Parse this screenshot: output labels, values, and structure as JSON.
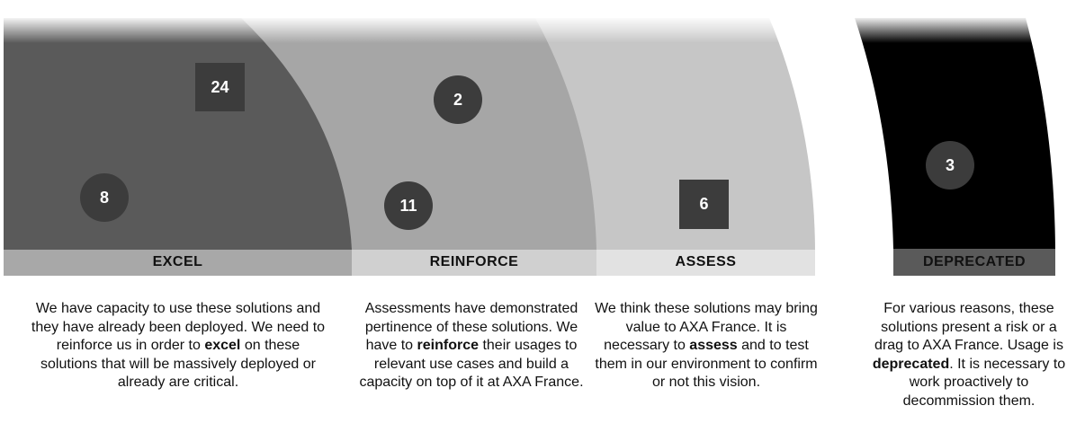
{
  "colors": {
    "excel": "#5a5a5a",
    "reinforce": "#a6a6a6",
    "assess": "#c6c6c6",
    "deprecated": "#000000",
    "marker": "#3c3c3c"
  },
  "bands": [
    {
      "id": "excel",
      "label": "EXCEL",
      "description": [
        {
          "t": "We have capacity to use these solutions and they have already been deployed. We need to reinforce us in order to "
        },
        {
          "t": "excel",
          "b": true
        },
        {
          "t": " on these solutions that will be massively deployed or already are critical."
        }
      ]
    },
    {
      "id": "reinforce",
      "label": "REINFORCE",
      "description": [
        {
          "t": "Assessments have demonstrated pertinence of these solutions. We have to "
        },
        {
          "t": "reinforce",
          "b": true
        },
        {
          "t": " their usages to relevant use cases and build a capacity on top of it at AXA France."
        }
      ]
    },
    {
      "id": "assess",
      "label": "ASSESS",
      "description": [
        {
          "t": "We think these solutions may bring value to AXA  France. It is necessary to "
        },
        {
          "t": "assess",
          "b": true
        },
        {
          "t": " and to test them in our environment to confirm or not this vision."
        }
      ]
    },
    {
      "id": "deprecated",
      "label": "DEPRECATED",
      "description": [
        {
          "t": "For various reasons, these solutions present a risk or a drag to AXA  France. Usage is "
        },
        {
          "t": "deprecated",
          "b": true
        },
        {
          "t": ". It is necessary to work proactively to decommission them."
        }
      ]
    }
  ],
  "markers": [
    {
      "value": "24",
      "shape": "square",
      "band": "excel"
    },
    {
      "value": "8",
      "shape": "circle",
      "band": "excel"
    },
    {
      "value": "2",
      "shape": "circle",
      "band": "reinforce"
    },
    {
      "value": "11",
      "shape": "circle",
      "band": "reinforce"
    },
    {
      "value": "6",
      "shape": "square",
      "band": "assess"
    },
    {
      "value": "3",
      "shape": "circle",
      "band": "deprecated"
    }
  ]
}
